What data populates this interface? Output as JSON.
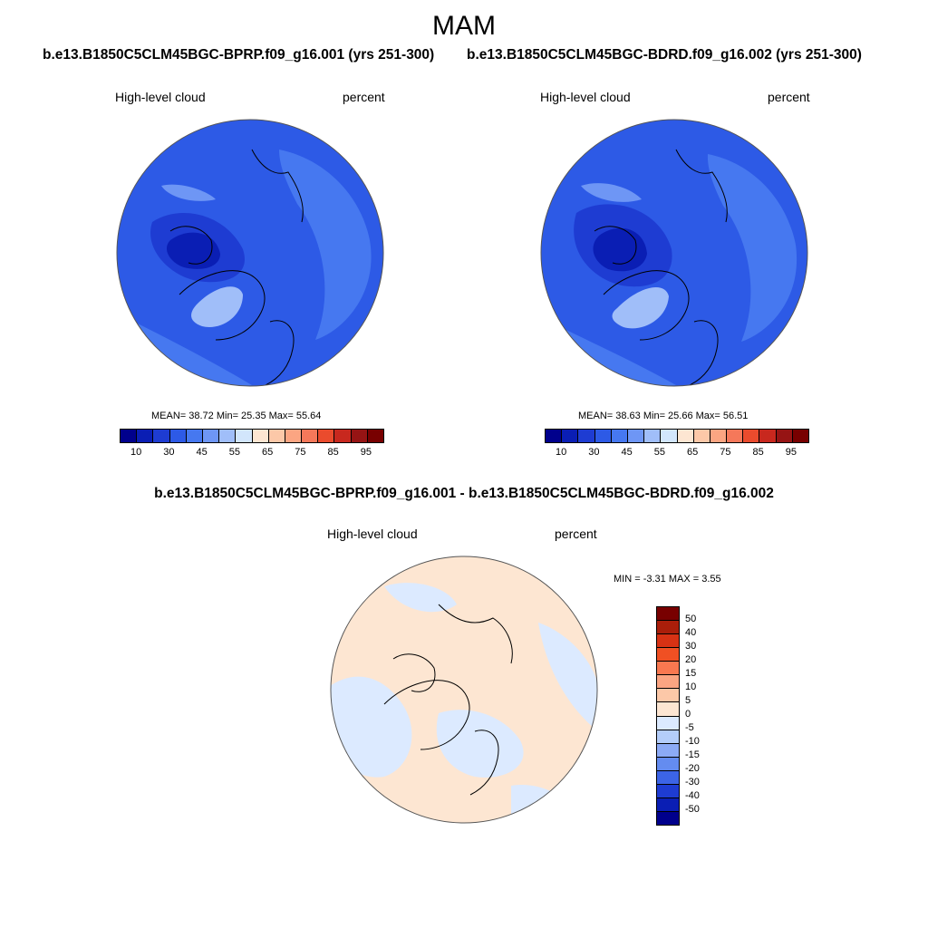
{
  "title": "MAM",
  "panels": [
    {
      "case": "b.e13.B1850C5CLM45BGC-BPRP.f09_g16.001 (yrs 251-300)",
      "variable": "High-level cloud",
      "units": "percent",
      "stats": "MEAN=  38.72  Min=  25.35  Max=  55.64"
    },
    {
      "case": "b.e13.B1850C5CLM45BGC-BDRD.f09_g16.002 (yrs 251-300)",
      "variable": "High-level cloud",
      "units": "percent",
      "stats": "MEAN=  38.63  Min=  25.66  Max=  56.51"
    }
  ],
  "abs_colorbar": {
    "labels": [
      "10",
      "30",
      "45",
      "55",
      "65",
      "75",
      "85",
      "95"
    ],
    "colors": [
      "#00008c",
      "#0a1eb4",
      "#1e3cd2",
      "#2d5ae6",
      "#4678f0",
      "#6e96f5",
      "#a0bef9",
      "#d2e6fc",
      "#fde6d2",
      "#fcc8a8",
      "#fba582",
      "#f5785a",
      "#ea4b2d",
      "#c8281e",
      "#961414",
      "#780000"
    ]
  },
  "difference": {
    "title": "b.e13.B1850C5CLM45BGC-BPRP.f09_g16.001 - b.e13.B1850C5CLM45BGC-BDRD.f09_g16.002",
    "variable": "High-level cloud",
    "units": "percent",
    "stats": "MIN =  -3.31 MAX =   3.55",
    "colorbar_labels": [
      "50",
      "40",
      "30",
      "20",
      "15",
      "10",
      "5",
      "0",
      "-5",
      "-10",
      "-15",
      "-20",
      "-30",
      "-40",
      "-50"
    ],
    "colorbar_colors": [
      "#780000",
      "#aa1e0a",
      "#d73214",
      "#f05023",
      "#f97850",
      "#fba582",
      "#fcc8a8",
      "#fde6d2",
      "#dceaff",
      "#b4cdfa",
      "#8caaf5",
      "#648cf0",
      "#3c64e6",
      "#1e3cd2",
      "#0a1eb4",
      "#00008c"
    ]
  },
  "colors": {
    "mean_field": "#2d5ae6",
    "low_cloud": "#1e3cd2",
    "high_cloud": "#4678f0",
    "diff_positive": "#fde6d2",
    "diff_negative": "#dceaff"
  }
}
